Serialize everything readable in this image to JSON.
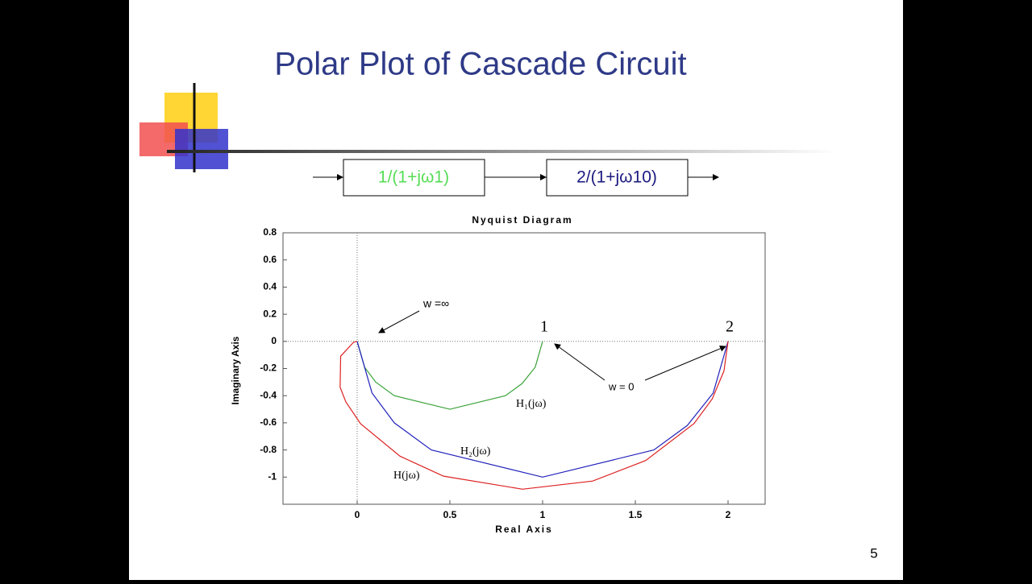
{
  "slide": {
    "title": "Polar Plot of Cascade Circuit",
    "block_1": "1/(1+jω1)",
    "block_2": "2/(1+jω10)",
    "page_number": "5"
  },
  "chart_data": {
    "type": "line",
    "title": "Nyquist Diagram",
    "x_label": "Real Axis",
    "y_label": "Imaginary Axis",
    "xlim": [
      -0.4,
      2.2
    ],
    "xticks": [
      0,
      0.5,
      1,
      1.5,
      2
    ],
    "ylim": [
      -1.2,
      0.8
    ],
    "yticks": [
      0.8,
      0.6,
      0.4,
      0.2,
      0,
      -0.2,
      -0.4,
      -0.6,
      -0.8,
      -1
    ],
    "annotations": [
      "w =∞",
      "w = 0",
      "1",
      "2"
    ],
    "series": [
      {
        "name": "H₁(jω)",
        "color": "#3aa33a",
        "x": [
          1,
          0.96,
          0.89,
          0.8,
          0.5,
          0.2,
          0.1,
          0.04,
          0
        ],
        "values": [
          0,
          -0.19,
          -0.31,
          -0.4,
          -0.5,
          -0.4,
          -0.3,
          -0.19,
          0
        ]
      },
      {
        "name": "H₂(jω)",
        "color": "#2222bb",
        "x": [
          2,
          1.92,
          1.78,
          1.6,
          1,
          0.4,
          0.2,
          0.08,
          0
        ],
        "values": [
          0,
          -0.38,
          -0.62,
          -0.8,
          -1,
          -0.8,
          -0.6,
          -0.38,
          0
        ]
      },
      {
        "name": "H(jω)",
        "color": "#dd2222",
        "x": [
          2,
          1.978,
          1.915,
          1.817,
          1.556,
          1.27,
          0.891,
          0.466,
          0.231,
          0.018,
          -0.061,
          -0.092,
          -0.089,
          -0.02,
          0
        ],
        "values": [
          0,
          -0.218,
          -0.423,
          -0.605,
          -0.878,
          -1.029,
          -1.089,
          -0.993,
          -0.846,
          -0.606,
          -0.446,
          -0.338,
          -0.109,
          -0.007,
          0
        ]
      }
    ]
  }
}
